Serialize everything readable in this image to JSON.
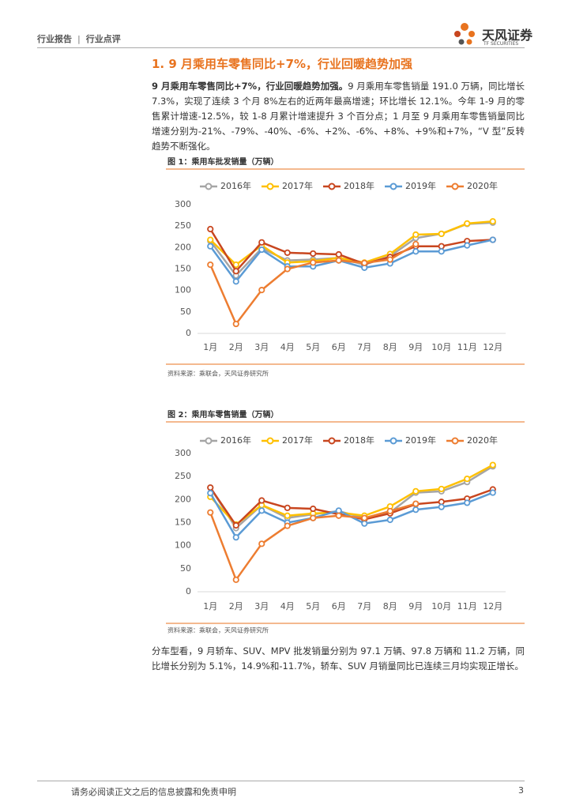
{
  "header": {
    "left": "行业报告",
    "separator": "|",
    "right": "行业点评",
    "logo": "天风证券",
    "logo_sub": "TF SECURITIES"
  },
  "section_title": "1. 9 月乘用车零售同比+7%，行业回暖趋势加强",
  "paragraphs": [
    {
      "bold": "9 月乘用车零售同比+7%，行业回暖趋势加强。",
      "text": "9 月乘用车零售销量 191.0 万辆，同比增长 7.3%，实现了连续 3 个月 8%左右的近两年最高增速；环比增长 12.1%。今年 1-9 月的零售累计增速-12.5%，较 1-8 月累计增速提升 3 个百分点；1 月至 9 月乘用车零售销量同比增速分别为-21%、-79%、-40%、-6%、+2%、-6%、+8%、+9%和+7%，“V 型”反转趋势不断强化。"
    },
    {
      "text": "分车型看，9 月轿车、SUV、MPV 批发销量分别为 97.1 万辆、97.8 万辆和 11.2 万辆，同比增长分别为 5.1%，14.9%和-11.7%，轿车、SUV 月销量同比已连续三月均实现正增长。"
    }
  ],
  "chart_data": [
    {
      "type": "line",
      "title": "图 1：乘用车批发销量（万辆）",
      "source": "资料来源：乘联会，天风证券研究所",
      "categories": [
        "1月",
        "2月",
        "3月",
        "4月",
        "5月",
        "6月",
        "7月",
        "8月",
        "9月",
        "10月",
        "11月",
        "12月"
      ],
      "ylim": [
        0,
        300
      ],
      "yticks": [
        0,
        50,
        100,
        150,
        200,
        250,
        300
      ],
      "grid": false,
      "series": [
        {
          "name": "2016年",
          "color": "#a5a5a5",
          "values": [
            215,
            135,
            198,
            170,
            172,
            176,
            160,
            180,
            222,
            232,
            255,
            258
          ]
        },
        {
          "name": "2017年",
          "color": "#ffc000",
          "values": [
            218,
            160,
            205,
            165,
            168,
            176,
            165,
            185,
            230,
            232,
            256,
            261
          ]
        },
        {
          "name": "2018年",
          "color": "#c8461f",
          "values": [
            243,
            145,
            212,
            188,
            186,
            184,
            162,
            178,
            203,
            203,
            215,
            218
          ]
        },
        {
          "name": "2019年",
          "color": "#5b9bd5",
          "values": [
            203,
            121,
            195,
            156,
            156,
            170,
            153,
            163,
            191,
            191,
            205,
            218
          ]
        },
        {
          "name": "2020年",
          "color": "#ed7d31",
          "values": [
            160,
            22,
            101,
            150,
            165,
            170,
            164,
            172,
            208,
            null,
            null,
            null
          ]
        }
      ]
    },
    {
      "type": "line",
      "title": "图 2：乘用车零售销量（万辆）",
      "source": "资料来源：乘联会，天风证券研究所",
      "categories": [
        "1月",
        "2月",
        "3月",
        "4月",
        "5月",
        "6月",
        "7月",
        "8月",
        "9月",
        "10月",
        "11月",
        "12月"
      ],
      "ylim": [
        0,
        300
      ],
      "yticks": [
        0,
        50,
        100,
        150,
        200,
        250,
        300
      ],
      "grid": false,
      "series": [
        {
          "name": "2016年",
          "color": "#a5a5a5",
          "values": [
            226,
            138,
            188,
            160,
            168,
            175,
            160,
            172,
            215,
            218,
            238,
            272
          ]
        },
        {
          "name": "2017年",
          "color": "#ffc000",
          "values": [
            206,
            146,
            188,
            165,
            170,
            172,
            165,
            185,
            218,
            223,
            245,
            275
          ]
        },
        {
          "name": "2018年",
          "color": "#c8461f",
          "values": [
            226,
            144,
            198,
            182,
            180,
            168,
            157,
            170,
            190,
            195,
            202,
            222
          ]
        },
        {
          "name": "2019年",
          "color": "#5b9bd5",
          "values": [
            214,
            118,
            176,
            150,
            160,
            176,
            148,
            156,
            178,
            184,
            193,
            215
          ]
        },
        {
          "name": "2020年",
          "color": "#ed7d31",
          "values": [
            172,
            26,
            104,
            143,
            160,
            165,
            160,
            175,
            191,
            null,
            null,
            null
          ]
        }
      ]
    }
  ],
  "footer": {
    "disclaimer": "请务必阅读正文之后的信息披露和免责申明",
    "page": "3"
  }
}
